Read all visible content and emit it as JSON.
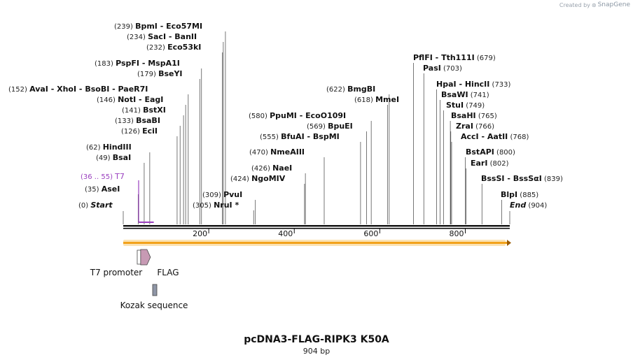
{
  "watermark": {
    "prefix": "Created by",
    "brand": "SnapGene"
  },
  "title": "pcDNA3-FLAG-RIPK3 K50A",
  "length_label": "904 bp",
  "sequence_length": 904,
  "colors": {
    "backbone": "#111111",
    "orf": "#f2a21b",
    "t7_primer": "#9a3fbf",
    "flag": "#c79ab4",
    "kozak": "#8f96a6"
  },
  "ticks": [
    "200",
    "400",
    "600",
    "800"
  ],
  "tick_values": [
    200,
    400,
    600,
    800
  ],
  "sites": [
    {
      "pos": 0,
      "pos_label": "(0)",
      "names": [
        "Start"
      ],
      "italic": true
    },
    {
      "pos": 35,
      "pos_label": "(35)",
      "names": [
        "AseI"
      ]
    },
    {
      "pos": 49,
      "pos_label": "(49)",
      "names": [
        "BsaI"
      ]
    },
    {
      "pos": 62,
      "pos_label": "(62)",
      "names": [
        "HindIII"
      ]
    },
    {
      "pos": 126,
      "pos_label": "(126)",
      "names": [
        "EciI"
      ]
    },
    {
      "pos": 133,
      "pos_label": "(133)",
      "names": [
        "BsaBI"
      ]
    },
    {
      "pos": 141,
      "pos_label": "(141)",
      "names": [
        "BstXI"
      ]
    },
    {
      "pos": 146,
      "pos_label": "(146)",
      "names": [
        "NotI",
        "EagI"
      ]
    },
    {
      "pos": 152,
      "pos_label": "(152)",
      "names": [
        "AvaI",
        "XhoI",
        "BsoBI",
        "PaeR7I"
      ]
    },
    {
      "pos": 179,
      "pos_label": "(179)",
      "names": [
        "BseYI"
      ]
    },
    {
      "pos": 183,
      "pos_label": "(183)",
      "names": [
        "PspFI",
        "MspA1I"
      ]
    },
    {
      "pos": 232,
      "pos_label": "(232)",
      "names": [
        "Eco53kI"
      ]
    },
    {
      "pos": 234,
      "pos_label": "(234)",
      "names": [
        "SacI",
        "BanII"
      ]
    },
    {
      "pos": 239,
      "pos_label": "(239)",
      "names": [
        "BpmI",
        "Eco57MI"
      ]
    },
    {
      "pos": 305,
      "pos_label": "(305)",
      "names": [
        "NruI *"
      ]
    },
    {
      "pos": 309,
      "pos_label": "(309)",
      "names": [
        "PvuI"
      ]
    },
    {
      "pos": 424,
      "pos_label": "(424)",
      "names": [
        "NgoMIV"
      ]
    },
    {
      "pos": 426,
      "pos_label": "(426)",
      "names": [
        "NaeI"
      ]
    },
    {
      "pos": 470,
      "pos_label": "(470)",
      "names": [
        "NmeAIII"
      ]
    },
    {
      "pos": 555,
      "pos_label": "(555)",
      "names": [
        "BfuAI",
        "BspMI"
      ]
    },
    {
      "pos": 569,
      "pos_label": "(569)",
      "names": [
        "BpuEI"
      ]
    },
    {
      "pos": 580,
      "pos_label": "(580)",
      "names": [
        "PpuMI",
        "EcoO109I"
      ]
    },
    {
      "pos": 618,
      "pos_label": "(618)",
      "names": [
        "MmeI"
      ]
    },
    {
      "pos": 622,
      "pos_label": "(622)",
      "names": [
        "BmgBI"
      ]
    },
    {
      "pos": 679,
      "pos_label": "(679)",
      "names": [
        "PflFI",
        "Tth111I"
      ]
    },
    {
      "pos": 703,
      "pos_label": "(703)",
      "names": [
        "PasI"
      ]
    },
    {
      "pos": 733,
      "pos_label": "(733)",
      "names": [
        "HpaI",
        "HincII"
      ]
    },
    {
      "pos": 741,
      "pos_label": "(741)",
      "names": [
        "BsaWI"
      ]
    },
    {
      "pos": 749,
      "pos_label": "(749)",
      "names": [
        "StuI"
      ]
    },
    {
      "pos": 765,
      "pos_label": "(765)",
      "names": [
        "BsaHI"
      ]
    },
    {
      "pos": 766,
      "pos_label": "(766)",
      "names": [
        "ZraI"
      ]
    },
    {
      "pos": 768,
      "pos_label": "(768)",
      "names": [
        "AccI",
        "AatII"
      ]
    },
    {
      "pos": 800,
      "pos_label": "(800)",
      "names": [
        "BstAPI"
      ]
    },
    {
      "pos": 802,
      "pos_label": "(802)",
      "names": [
        "EarI"
      ]
    },
    {
      "pos": 839,
      "pos_label": "(839)",
      "names": [
        "BssSI",
        "BssSαI"
      ]
    },
    {
      "pos": 885,
      "pos_label": "(885)",
      "names": [
        "BlpI"
      ]
    },
    {
      "pos": 904,
      "pos_label": "(904)",
      "names": [
        "End"
      ],
      "italic": true
    }
  ],
  "primer": {
    "range_label": "(36 .. 55)",
    "name": "T7",
    "start": 36,
    "end": 55
  },
  "features": [
    {
      "name": "T7 promoter",
      "start": 36,
      "end": 55,
      "shape": "arrow-right-open"
    },
    {
      "name": "FLAG",
      "start": 80,
      "end": 103,
      "shape": "arrow-right-filled"
    },
    {
      "name": "Kozak sequence",
      "start": 70,
      "end": 79,
      "shape": "box"
    }
  ],
  "orf": {
    "start": 0,
    "end": 904,
    "direction": "forward"
  }
}
